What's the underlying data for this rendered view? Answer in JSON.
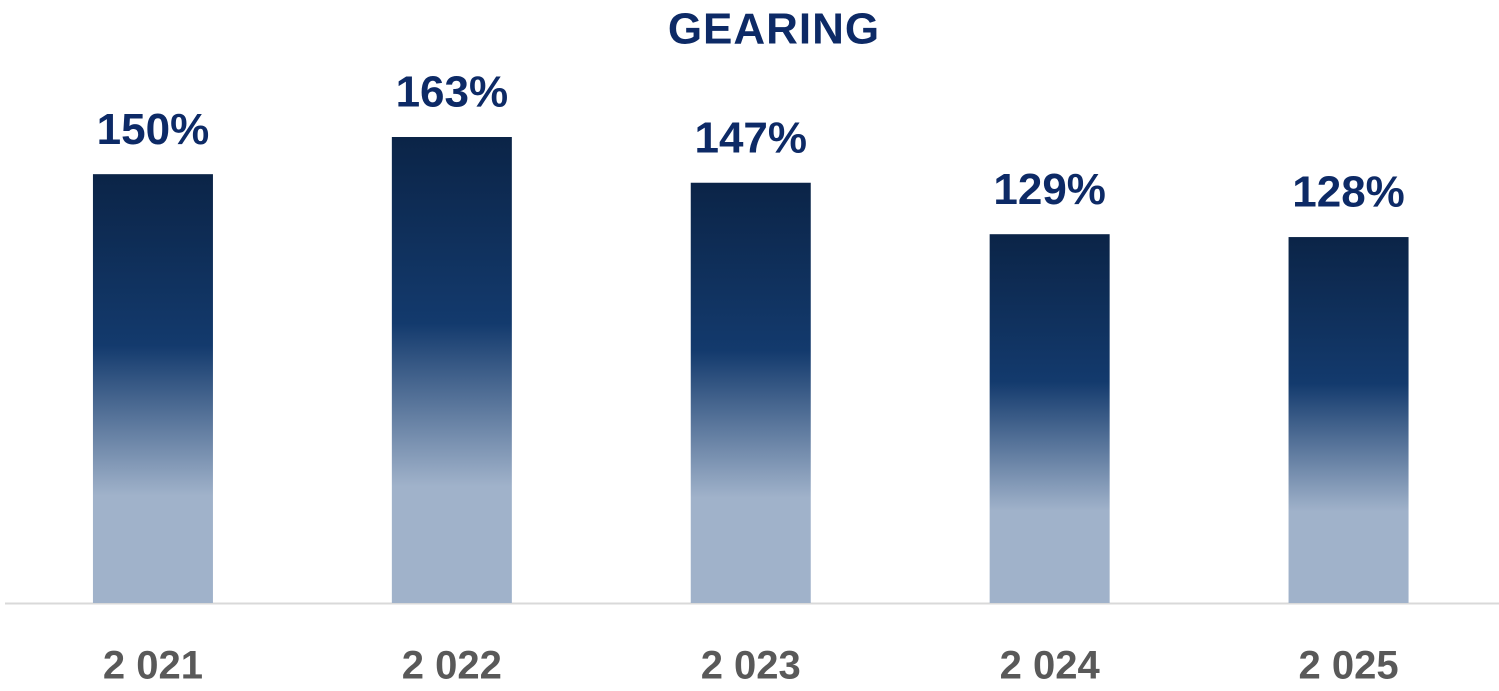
{
  "chart_data": {
    "type": "bar",
    "title": "GEARING",
    "categories": [
      "2 021",
      "2 022",
      "2 023",
      "2 024",
      "2 025"
    ],
    "values": [
      150,
      163,
      147,
      129,
      128
    ],
    "value_labels": [
      "150%",
      "163%",
      "147%",
      "129%",
      "128%"
    ],
    "colors": [
      "#0b2447",
      "#133a6d",
      "#a0b2ca"
    ]
  }
}
